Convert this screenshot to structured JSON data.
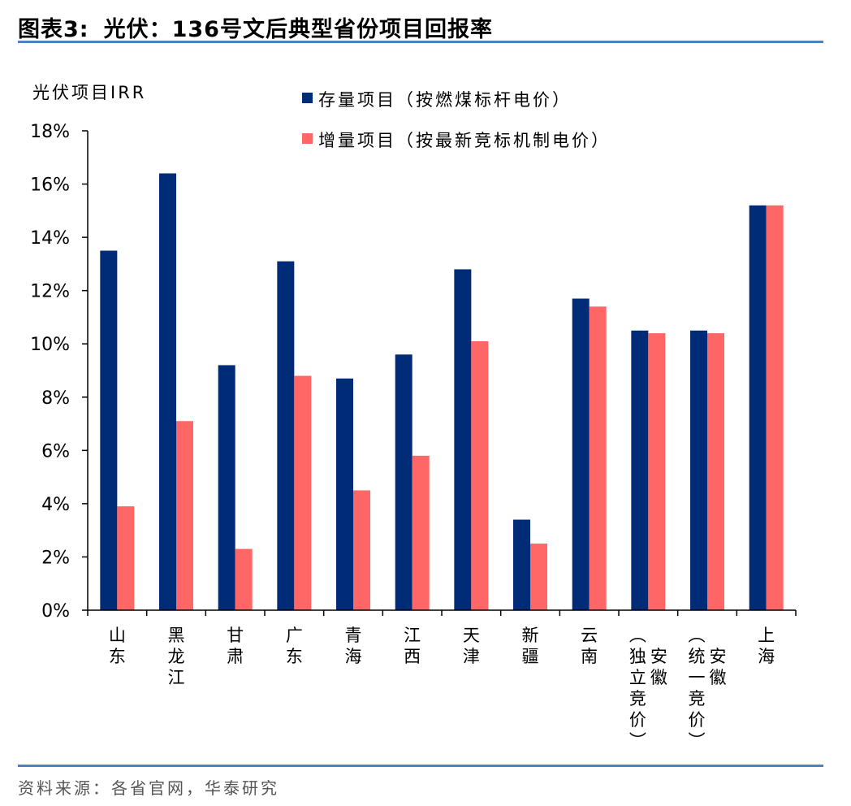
{
  "figure": {
    "label": "图表3:",
    "title": "光伏：136号文后典型省份项目回报率",
    "source": "资料来源：各省官网，华泰研究"
  },
  "chart_data": {
    "type": "bar",
    "ylabel": "光伏项目IRR",
    "ylim": [
      0,
      0.18
    ],
    "yticks": [
      0,
      0.02,
      0.04,
      0.06,
      0.08,
      0.1,
      0.12,
      0.14,
      0.16,
      0.18
    ],
    "ytick_labels": [
      "0%",
      "2%",
      "4%",
      "6%",
      "8%",
      "10%",
      "12%",
      "14%",
      "16%",
      "18%"
    ],
    "legend_position": "top",
    "categories": [
      "山东",
      "黑龙江",
      "甘肃",
      "广东",
      "青海",
      "江西",
      "天津",
      "新疆",
      "云南",
      "安徽（独立竞价）",
      "安徽（统一竞价）",
      "上海"
    ],
    "category_label_columns": [
      [
        [
          "山",
          "东"
        ]
      ],
      [
        [
          "黑",
          "龙",
          "江"
        ]
      ],
      [
        [
          "甘",
          "肃"
        ]
      ],
      [
        [
          "广",
          "东"
        ]
      ],
      [
        [
          "青",
          "海"
        ]
      ],
      [
        [
          "江",
          "西"
        ]
      ],
      [
        [
          "天",
          "津"
        ]
      ],
      [
        [
          "新",
          "疆"
        ]
      ],
      [
        [
          "云",
          "南"
        ]
      ],
      [
        [
          "︵",
          "独",
          "立",
          "竞",
          "价",
          "︶"
        ],
        [
          "",
          "安",
          "徽"
        ]
      ],
      [
        [
          "︵",
          "统",
          "一",
          "竞",
          "价",
          "︶"
        ],
        [
          "",
          "安",
          "徽"
        ]
      ],
      [
        [
          "上",
          "海"
        ]
      ]
    ],
    "series": [
      {
        "name": "存量项目（按燃煤标杆电价）",
        "color": "#002c77",
        "values": [
          0.135,
          0.164,
          0.092,
          0.131,
          0.087,
          0.096,
          0.128,
          0.034,
          0.117,
          0.105,
          0.105,
          0.152
        ]
      },
      {
        "name": "增量项目（按最新竞标机制电价）",
        "color": "#ff6666",
        "values": [
          0.039,
          0.071,
          0.023,
          0.088,
          0.045,
          0.058,
          0.101,
          0.025,
          0.114,
          0.104,
          0.104,
          0.152
        ]
      }
    ]
  }
}
